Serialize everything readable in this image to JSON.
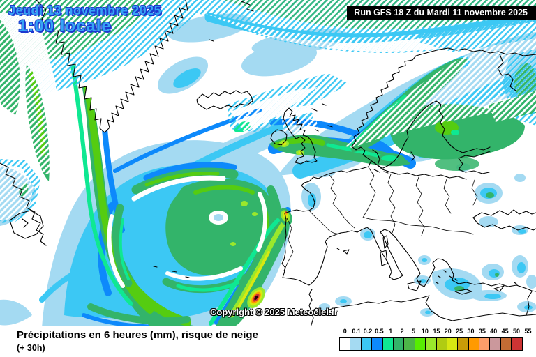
{
  "header": {
    "date_line1": "Jeudi 13 novembre 2025",
    "date_line2": "1:00 locale",
    "run_label": "Run GFS 18 Z du Mardi 11 novembre 2025"
  },
  "map": {
    "copyright": "Copyright © 2025 Meteociel.fr"
  },
  "footer": {
    "caption": "Précipitations en 6 heures (mm), risque de neige",
    "lead_time": "(+ 30h)"
  },
  "legend": {
    "unit": "mm",
    "items": [
      {
        "value": "0",
        "color": "#ffffff"
      },
      {
        "value": "0.1",
        "color": "#a4daf2"
      },
      {
        "value": "0.2",
        "color": "#3cc8f4"
      },
      {
        "value": "0.5",
        "color": "#0d89fb"
      },
      {
        "value": "1",
        "color": "#0fe892"
      },
      {
        "value": "2",
        "color": "#33b46a"
      },
      {
        "value": "5",
        "color": "#4db648"
      },
      {
        "value": "10",
        "color": "#57ed02"
      },
      {
        "value": "15",
        "color": "#9ae82c"
      },
      {
        "value": "20",
        "color": "#b0cc12"
      },
      {
        "value": "25",
        "color": "#d8e812"
      },
      {
        "value": "30",
        "color": "#c99c08"
      },
      {
        "value": "35",
        "color": "#ff9a00"
      },
      {
        "value": "40",
        "color": "#fc9e69"
      },
      {
        "value": "45",
        "color": "#cb989c"
      },
      {
        "value": "50",
        "color": "#c46c34"
      },
      {
        "value": "55",
        "color": "#cd3434"
      }
    ]
  },
  "colors": {
    "date-text": "#36a4f4",
    "date-outline": "#1b37cf",
    "run-bg": "#000000",
    "run-fg": "#ffffff",
    "copyright-fg": "#ffffff",
    "caption-fg": "#000000",
    "sea-bg": "#ffffff"
  }
}
